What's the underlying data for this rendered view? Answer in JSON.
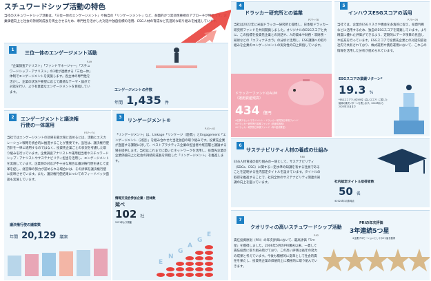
{
  "title": "スチュワードシップ活動の特色",
  "intro": "当社のスチュワードシップ活動は、「三位一体のエンゲージメント」や独自の「リンゲージメント」など、多面的かつ実効性重視のアプローチが特徴です。企業価値向上と社会の持続的成長を両立させるため、専門性を活かした対話や独自指標の活用、ESG人材の育成など先進的な取り組みを推進しています。",
  "items": [
    {
      "num": "1",
      "heading": "三位一体のエンゲージメント活動",
      "page": "P.49",
      "body": "「企業調査アナリスト」「ファンドマネージャー」「スチュワードシップ・アナリスト」の3者が連携する「三位一体」体制でエンゲージメントを実施します。各主体の専門性を活かし、企業の状況や要望に応じて最適なテーマ・論点で対話を行い、より有意義なエンゲージメントを目指しています。",
      "stat_label": "エンゲージメントの件数",
      "stat_prefix": "年間",
      "stat_value": "1,435",
      "stat_unit": "件"
    },
    {
      "num": "2",
      "heading": "エンゲージメントと議決権行使の一体運用",
      "page": "P.57〜74",
      "body": "当社ではエンゲージメントの効果を最大限に高めるには、活動とエスカレーション戦略を統合的に推進することが重要です。当社は、議決権行使方針を一律に適用するのではなく、投資先企業ごとの状況を考慮した取り組みを行っています。企業調査アナリストや運用担当者やスチュワードシップ・アナリストやサステナビリティ担当を活用し、エンゲージメントを実施しています。企業側の対応が不十分な場合は議決権行使を通じて変革を促し、経営陣の努力が認められる場合には、その評価を議決権行使に反映させています。また、議決権行使結果についてのフィードバック面談も実施しています。",
      "stat_label": "議決権行使の議案数",
      "stat_prefix": "年間",
      "stat_value": "20,129",
      "stat_unit": "議案"
    },
    {
      "num": "3",
      "heading": "リンゲージメント®",
      "page": "P.41〜42",
      "body": "「リンゲージメント」は、Linkage「リンケージ（連携）」とEngagement「エンゲージメント（対話）」を組み合わせた当社独自の取り組みです。投資先企業が直面する課題に対して、ベストプラクティス企業の担当者や経営層と議論する場を提供します。当社はこれまでに築いたネットワークを活用し、投資先企業の企業価値向上と社会の持続的成長を目指した「リンゲージメント」を推進します。",
      "stat_label": "情報交流会参加企業・団体数",
      "stat_prefix": "延べ",
      "stat_value": "102",
      "stat_unit": "社",
      "stat_note": "2021年より開催"
    },
    {
      "num": "4",
      "heading": "ドラッカー研究所との協業",
      "page": "P.77〜78",
      "body": "当社は2022年に米国ドラッカー研究所と提携し、日本版ドラッカー研究所ファンドを共同開発しました。オリジナルのESGスコアと共に、この指標を投資先企業との対話や、人的資本や財務・非財務・知財などの「エフィナチカラ」の分析に活用し、ESG課題への取り組みを企業のエンゲージメントの実効性の向上目指しています。",
      "stat_label": "ドラッカーファンドのAUM\n（運用資産残高）",
      "stat_value": "434",
      "stat_unit": "億円",
      "stat_note": "※日興アセットマネジメント・ドラッカー研究所日本株ファンド\n※ドラッカー研究所日本株ファンド（資産成長型）\n※ドラッカー研究所日本株ファンド（年2回決算型）"
    },
    {
      "num": "5",
      "heading": "インハウスESGスコアの活用",
      "page": "P.75〜76",
      "body": "当社では、企業のESGリスクや機会を多角的に捉え、投資判断などに活用するため、独自のESGスコアを開発しています。より精度に優れた評価ができるよう、定期的にデータ項目の見直しや拡充を行っています。ESGスコアで投資先企業との対話内容は社内で共有されており、株式運用や債券運用において、これらの情報を活用した分析が進められています。",
      "stat_label": "ESGスコアの業績リターン*",
      "stat_value": "19.3",
      "stat_unit": "%",
      "stat_note": "*ESGスコアで上位5分位（高いスコア）に属した銘柄の株式リターンを表します。2016年から2023年12月まで"
    },
    {
      "num": "6",
      "heading": "サステナビリティ人材の養成の仕組み",
      "page": "P.80",
      "body": "ESG人材育成の取り組みの一環として、サステナビリティ（SDGs、ESG）に関する一定水準の知識を有する社員であることを証明する社内認定タイトルを設けています。タイトルの取得を推進することで、社内全体のサステナビリティ関連の知識の向上を図っています。",
      "stat_label": "社内認定タイトル取得者数",
      "stat_value": "50",
      "stat_unit": "名",
      "stat_note": "※2024年1月末時点"
    },
    {
      "num": "7",
      "heading": "クオリティの高いスチュワードシップ活動",
      "page": "P.92",
      "body": "責任投資原則（PRI）の年次評価において、最高評価「5つ星」を獲得しました。2006年5月のPRI署名以来、一貫して責任投資に取り組み続けており、この高い評価は長年の努力の成果と考えています。今後も積極的に変革として社会的責任を果たし、投資先企業の価値向上に積極的に取り組んでいきます。",
      "stat_label": "PRIの年次評価",
      "stat_value": "3年連続5つ星",
      "stat_note": "※主要プロモーションとしての5つ星を獲得"
    }
  ],
  "chart_bars": {
    "labels": [
      "E",
      "N",
      "G",
      "A",
      "G",
      "E"
    ],
    "counts": [
      1,
      2,
      3,
      4,
      5,
      6
    ]
  },
  "colors": {
    "accent": "#1d7fc3",
    "pink": "#e8738f",
    "red": "#e8413c",
    "teal": "#1fa6b4"
  }
}
